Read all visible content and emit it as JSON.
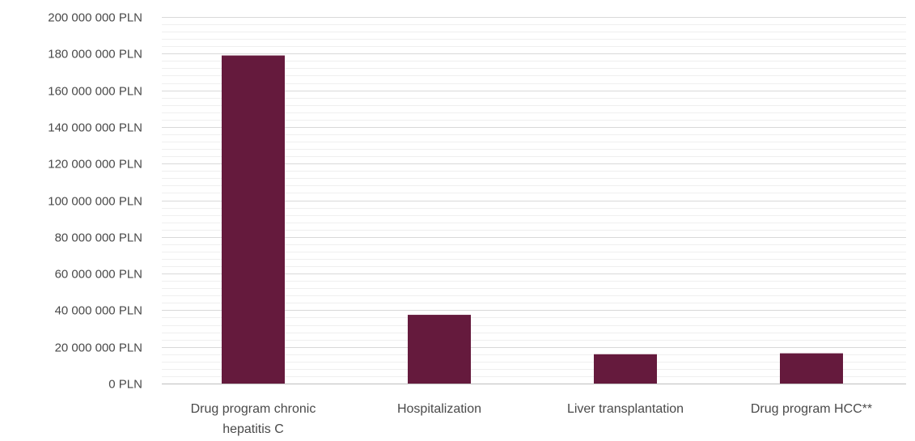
{
  "chart_data": {
    "type": "bar",
    "title": "",
    "xlabel": "",
    "ylabel": "",
    "categories": [
      [
        "Drug program chronic",
        "hepatitis C"
      ],
      [
        "Hospitalization"
      ],
      [
        "Liver transplantation"
      ],
      [
        "Drug program HCC**"
      ]
    ],
    "values": [
      179000000,
      37500000,
      16000000,
      16500000
    ],
    "ylim": [
      0,
      200000000
    ],
    "y_ticks": [
      {
        "value": 0,
        "label": "0 PLN"
      },
      {
        "value": 20000000,
        "label": "20 000 000 PLN"
      },
      {
        "value": 40000000,
        "label": "40 000 000 PLN"
      },
      {
        "value": 60000000,
        "label": "60 000 000 PLN"
      },
      {
        "value": 80000000,
        "label": "80 000 000 PLN"
      },
      {
        "value": 100000000,
        "label": "100 000 000 PLN"
      },
      {
        "value": 120000000,
        "label": "120 000 000 PLN"
      },
      {
        "value": 140000000,
        "label": "140 000 000 PLN"
      },
      {
        "value": 160000000,
        "label": "160 000 000 PLN"
      },
      {
        "value": 180000000,
        "label": "180 000 000 PLN"
      },
      {
        "value": 200000000,
        "label": "200 000 000 PLN"
      }
    ],
    "grid": true,
    "minor_grid": true,
    "legend": "none",
    "bar_color": "#651A3D"
  }
}
